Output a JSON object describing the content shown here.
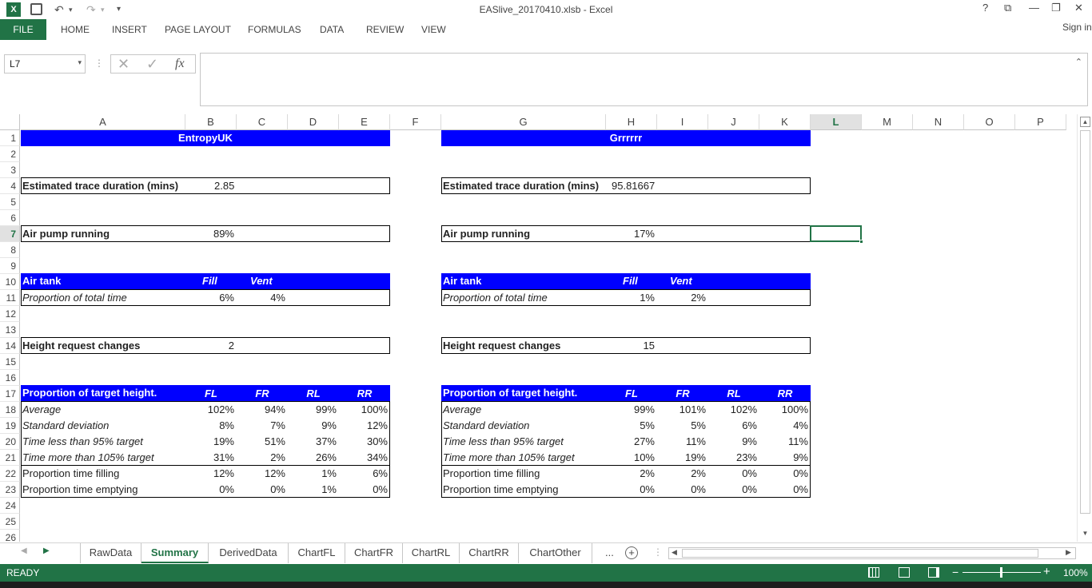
{
  "window": {
    "title": "EASlive_20170410.xlsb - Excel"
  },
  "quick_access": {
    "save": "save-icon",
    "undo": "↶",
    "redo": "↷",
    "customize": "▾"
  },
  "window_controls": {
    "help": "?",
    "restore_ribbon": "⧉",
    "minimize": "—",
    "maximize": "❐",
    "close": "✕"
  },
  "ribbon": {
    "tabs": [
      "FILE",
      "HOME",
      "INSERT",
      "PAGE LAYOUT",
      "FORMULAS",
      "DATA",
      "REVIEW",
      "VIEW"
    ],
    "sign_in": "Sign in"
  },
  "formula_bar": {
    "name_box": "L7",
    "cancel": "✕",
    "enter": "✓",
    "fx": "fx",
    "value": ""
  },
  "columns": [
    "A",
    "B",
    "C",
    "D",
    "E",
    "F",
    "G",
    "H",
    "I",
    "J",
    "K",
    "L",
    "M",
    "N",
    "O",
    "P"
  ],
  "selected_column": "L",
  "rows": [
    "1",
    "2",
    "3",
    "4",
    "5",
    "6",
    "7",
    "8",
    "9",
    "10",
    "11",
    "12",
    "13",
    "14",
    "15",
    "16",
    "17",
    "18",
    "19",
    "20",
    "21",
    "22",
    "23",
    "24",
    "25",
    "26"
  ],
  "selected_row": "7",
  "left_block": {
    "header": "EntropyUK",
    "trace_label": "Estimated trace duration (mins)",
    "trace_value": "2.85",
    "pump_label": "Air pump running",
    "pump_value": "89%",
    "tank_label": "Air tank",
    "tank_fill": "Fill",
    "tank_vent": "Vent",
    "prop_label": "Proportion of total time",
    "prop_fill": "6%",
    "prop_vent": "4%",
    "height_label": "Height request changes",
    "height_value": "2",
    "target_label": "Proportion of target height.",
    "wheel_headers": [
      "FL",
      "FR",
      "RL",
      "RR"
    ],
    "stat_rows": [
      {
        "label": "Average",
        "values": [
          "102%",
          "94%",
          "99%",
          "100%"
        ]
      },
      {
        "label": "Standard deviation",
        "values": [
          "8%",
          "7%",
          "9%",
          "12%"
        ]
      },
      {
        "label": "Time less than 95% target",
        "values": [
          "19%",
          "51%",
          "37%",
          "30%"
        ]
      },
      {
        "label": "Time more than 105% target",
        "values": [
          "31%",
          "2%",
          "26%",
          "34%"
        ]
      }
    ],
    "fill_rows": [
      {
        "label": "Proportion time filling",
        "values": [
          "12%",
          "12%",
          "1%",
          "6%"
        ]
      },
      {
        "label": "Proportion time emptying",
        "values": [
          "0%",
          "0%",
          "1%",
          "0%"
        ]
      }
    ]
  },
  "right_block": {
    "header": "Grrrrrr",
    "trace_label": "Estimated trace duration (mins)",
    "trace_value": "95.81667",
    "pump_label": "Air pump running",
    "pump_value": "17%",
    "tank_label": "Air tank",
    "tank_fill": "Fill",
    "tank_vent": "Vent",
    "prop_label": "Proportion of total time",
    "prop_fill": "1%",
    "prop_vent": "2%",
    "height_label": "Height request changes",
    "height_value": "15",
    "target_label": "Proportion of target height.",
    "wheel_headers": [
      "FL",
      "FR",
      "RL",
      "RR"
    ],
    "stat_rows": [
      {
        "label": "Average",
        "values": [
          "99%",
          "101%",
          "102%",
          "100%"
        ]
      },
      {
        "label": "Standard deviation",
        "values": [
          "5%",
          "5%",
          "6%",
          "4%"
        ]
      },
      {
        "label": "Time less than 95% target",
        "values": [
          "27%",
          "11%",
          "9%",
          "11%"
        ]
      },
      {
        "label": "Time more than 105% target",
        "values": [
          "10%",
          "19%",
          "23%",
          "9%"
        ]
      }
    ],
    "fill_rows": [
      {
        "label": "Proportion time filling",
        "values": [
          "2%",
          "2%",
          "0%",
          "0%"
        ]
      },
      {
        "label": "Proportion time emptying",
        "values": [
          "0%",
          "0%",
          "0%",
          "0%"
        ]
      }
    ]
  },
  "sheet_tabs": {
    "tabs": [
      "RawData",
      "Summary",
      "DerivedData",
      "ChartFL",
      "ChartFR",
      "ChartRL",
      "ChartRR",
      "ChartOther"
    ],
    "active": "Summary",
    "more": "...",
    "add": "+"
  },
  "status_bar": {
    "status": "READY",
    "zoom": "100%",
    "zoom_out": "−",
    "zoom_in": "+"
  },
  "colors": {
    "excel_green": "#217346",
    "block_header": "#0000ff"
  }
}
